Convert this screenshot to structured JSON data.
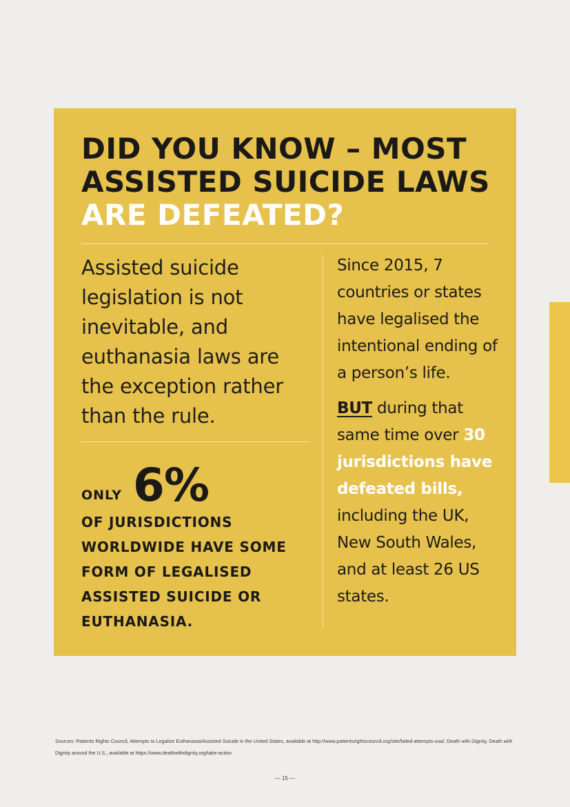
{
  "headline": {
    "line1": "DID YOU KNOW – MOST",
    "line2": "ASSISTED SUICIDE LAWS",
    "line3": "ARE DEFEATED?"
  },
  "intro": "Assisted suicide legislation is not inevitable, and euthanasia laws are the exception rather than the rule.",
  "stat": {
    "only": "ONLY",
    "value": "6%",
    "caption": "OF JURISDICTIONS WORLDWIDE HAVE SOME FORM OF LEGALISED ASSISTED SUICIDE OR EUTHANASIA."
  },
  "right": {
    "para1": "Since 2015, 7 countries or states have legalised the intentional ending of a person’s life.",
    "but": "BUT",
    "para2_a": " during that same time over ",
    "highlight": "30 jurisdictions have defeated bills,",
    "para2_b": " including the UK, New South Wales, and at least 26 US states."
  },
  "sources": "Sources: Patients Rights Council, Attempts to Legalize Euthanasia/Assisted Suicide in the United States, available at http://www.patientsrightscouncil.org/site/failed-attempts-usa/; Death with Dignity, Death with Dignity around the U.S., available at https://www.deathwithdignity.org/take-action",
  "page_number": "— 15 —",
  "colors": {
    "panel": "#e6c14c",
    "accent_tab": "#ecc54a",
    "highlight_text": "#ffffff"
  }
}
